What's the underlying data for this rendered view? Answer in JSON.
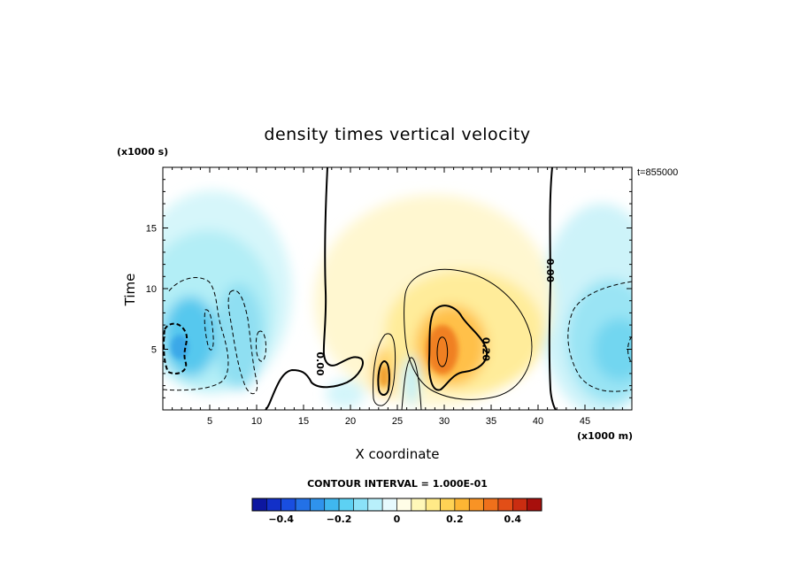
{
  "chart_data": {
    "type": "heatmap",
    "title": "density times vertical velocity",
    "xlabel": "X coordinate",
    "ylabel": "Time",
    "x_scale_label": "(x1000 m)",
    "y_scale_label": "(x1000 s)",
    "time_stamp": "t=855000",
    "xlim": [
      0,
      50
    ],
    "ylim": [
      0,
      20
    ],
    "x_ticks": [
      5,
      10,
      15,
      20,
      25,
      30,
      35,
      40,
      45
    ],
    "y_ticks": [
      5,
      10,
      15
    ],
    "contour_interval_text": "CONTOUR INTERVAL = 1.000E-01",
    "contour_labels": [
      {
        "text": "0.00",
        "x": 16.8,
        "y": 3.8
      },
      {
        "text": "0.00",
        "x": 41.3,
        "y": 11.5
      },
      {
        "text": "0.20",
        "x": 34.5,
        "y": 5.0
      }
    ],
    "colorbar": {
      "min": -0.5,
      "max": 0.5,
      "step": 0.05,
      "tick_values": [
        -0.4,
        -0.2,
        0,
        0.2,
        0.4
      ],
      "tick_labels": [
        "−0.4",
        "−0.2",
        "0",
        "0.2",
        "0.4"
      ]
    },
    "features": [
      {
        "x": 2.0,
        "y": 5.0,
        "value": -0.3
      },
      {
        "x": 5.0,
        "y": 7.0,
        "value": -0.15
      },
      {
        "x": 8.0,
        "y": 6.0,
        "value": -0.1
      },
      {
        "x": 47.0,
        "y": 5.5,
        "value": -0.2
      },
      {
        "x": 23.5,
        "y": 3.0,
        "value": 0.25
      },
      {
        "x": 26.5,
        "y": 2.5,
        "value": -0.1
      },
      {
        "x": 30.0,
        "y": 5.0,
        "value": 0.3
      },
      {
        "x": 29.5,
        "y": 4.0,
        "value": 0.35
      },
      {
        "x": 32.0,
        "y": 8.0,
        "value": 0.12
      },
      {
        "x": 28.0,
        "y": 13.0,
        "value": 0.05
      }
    ]
  }
}
